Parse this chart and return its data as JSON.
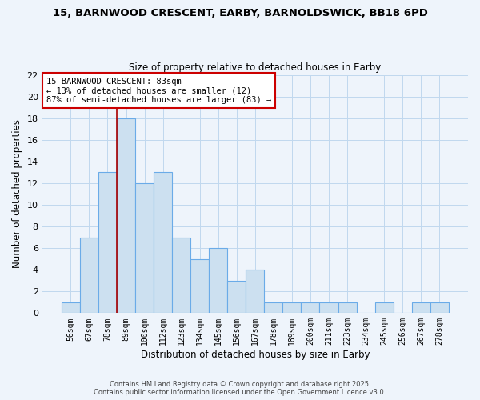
{
  "title_line1": "15, BARNWOOD CRESCENT, EARBY, BARNOLDSWICK, BB18 6PD",
  "title_line2": "Size of property relative to detached houses in Earby",
  "xlabel": "Distribution of detached houses by size in Earby",
  "ylabel": "Number of detached properties",
  "bar_labels": [
    "56sqm",
    "67sqm",
    "78sqm",
    "89sqm",
    "100sqm",
    "112sqm",
    "123sqm",
    "134sqm",
    "145sqm",
    "156sqm",
    "167sqm",
    "178sqm",
    "189sqm",
    "200sqm",
    "211sqm",
    "223sqm",
    "234sqm",
    "245sqm",
    "256sqm",
    "267sqm",
    "278sqm"
  ],
  "bar_values": [
    1,
    7,
    13,
    18,
    12,
    13,
    7,
    5,
    6,
    3,
    4,
    1,
    1,
    1,
    1,
    1,
    0,
    1,
    0,
    1,
    1
  ],
  "bar_color": "#cce0f0",
  "bar_edge_color": "#6aabe8",
  "ylim": [
    0,
    22
  ],
  "yticks": [
    0,
    2,
    4,
    6,
    8,
    10,
    12,
    14,
    16,
    18,
    20,
    22
  ],
  "vline_color": "#aa0000",
  "annotation_title": "15 BARNWOOD CRESCENT: 83sqm",
  "annotation_line1": "← 13% of detached houses are smaller (12)",
  "annotation_line2": "87% of semi-detached houses are larger (83) →",
  "footer_line1": "Contains HM Land Registry data © Crown copyright and database right 2025.",
  "footer_line2": "Contains public sector information licensed under the Open Government Licence v3.0.",
  "bg_color": "#eef4fb",
  "grid_color": "#c0d8ee"
}
